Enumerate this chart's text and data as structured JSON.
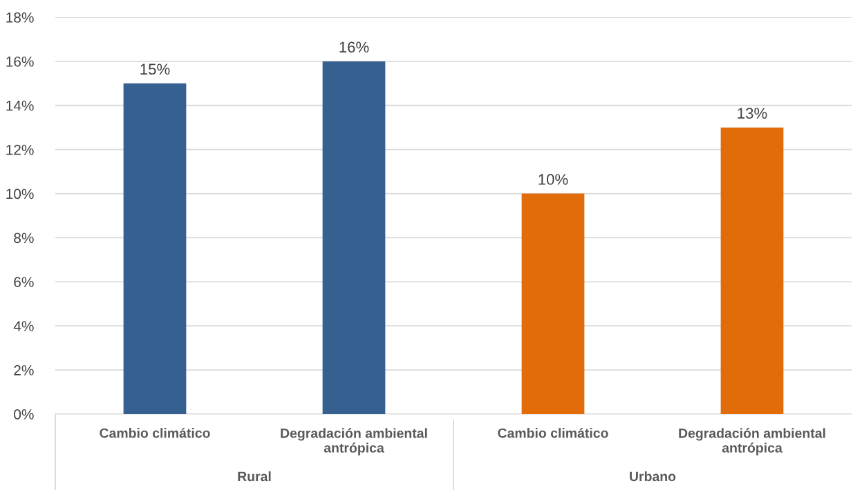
{
  "chart_data": {
    "type": "bar",
    "categories": [
      "Cambio climático",
      "Degradación ambiental\nantrópica",
      "Cambio climático",
      "Degradación ambiental\nantrópica"
    ],
    "values": [
      15,
      16,
      10,
      13
    ],
    "colors": [
      "#35608f",
      "#35608f",
      "#e36c0a",
      "#e36c0a"
    ],
    "value_labels": [
      "15%",
      "16%",
      "10%",
      "13%"
    ],
    "annotations": [
      "Rural",
      "Urbano"
    ],
    "ylim": [
      0,
      18
    ],
    "yticks": [
      {
        "value": 0,
        "label": "0%"
      },
      {
        "value": 2,
        "label": "2%"
      },
      {
        "value": 4,
        "label": "4%"
      },
      {
        "value": 6,
        "label": "6%"
      },
      {
        "value": 8,
        "label": "8%"
      },
      {
        "value": 10,
        "label": "10%"
      },
      {
        "value": 12,
        "label": "12%"
      },
      {
        "value": 14,
        "label": "14%"
      },
      {
        "value": 16,
        "label": "16%"
      },
      {
        "value": 18,
        "label": "18%"
      }
    ],
    "grid": "y"
  }
}
